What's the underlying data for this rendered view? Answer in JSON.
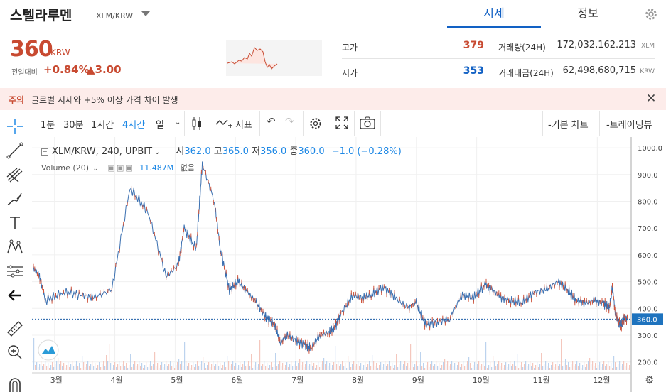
{
  "header": {
    "coin_name": "스텔라루멘",
    "pair": "XLM/KRW",
    "tabs": [
      "시세",
      "정보"
    ]
  },
  "ticker": {
    "price": "360",
    "unit": "KRW",
    "change_label": "전일대비",
    "change_rate": "+0.84%",
    "change_amount": "▲3.00",
    "high_label": "고가",
    "high": "379",
    "low_label": "저가",
    "low": "353",
    "volume_label": "거래량(24H)",
    "volume": "172,032,162.213",
    "volume_unit": "XLM",
    "value_label": "거래대금(24H)",
    "value": "62,498,680,715",
    "value_unit": "KRW"
  },
  "notice": {
    "tag": "주의",
    "text": "글로벌 시세와 +5% 이상 가격 차이 발생"
  },
  "toolbar": {
    "intervals": [
      "1분",
      "30분",
      "1시간",
      "4시간",
      "일"
    ],
    "indicators": "지표",
    "basic_chart": "-기본 차트",
    "trading_view": "-트레이딩뷰"
  },
  "legend": {
    "symbol": "XLM/KRW, 240, UPBIT",
    "o_label": "시",
    "o": "362.0",
    "h_label": "고",
    "h": "365.0",
    "l_label": "저",
    "l": "356.0",
    "c_label": "종",
    "c": "360.0",
    "change": "−1.0 (−0.28%)",
    "volume_label": "Volume (20)",
    "volume_value": "11.487M",
    "volume_extra": "없음"
  },
  "colors": {
    "up": "#c84a31",
    "down": "#1261c4",
    "accent": "#1e88e5"
  },
  "chart_data": {
    "type": "line",
    "x_labels": [
      "3월",
      "4월",
      "5월",
      "6월",
      "7월",
      "8월",
      "9월",
      "10월",
      "11월",
      "12월"
    ],
    "y_ticks": [
      200,
      300,
      400,
      500,
      600,
      700,
      800,
      900,
      1000
    ],
    "y_tick_labels": [
      "200.0",
      "300.0",
      "400.0",
      "500.0",
      "600.0",
      "700.0",
      "800.0",
      "900.0",
      "1000.0"
    ],
    "ylim": [
      170,
      1040
    ],
    "last_price": 360,
    "last_price_label": "360.0",
    "series": [
      {
        "t": [
          0,
          0.1,
          0.2,
          0.5,
          0.8,
          1.0,
          1.3,
          1.6,
          1.9,
          2.2,
          2.4,
          2.5,
          2.7,
          2.8,
          3.0,
          3.1,
          3.25,
          3.4,
          3.55,
          3.7,
          3.85,
          4.0,
          4.1,
          4.2,
          4.35,
          4.5,
          4.6,
          4.75,
          4.9,
          5.0,
          5.1,
          5.3,
          5.45,
          5.6,
          5.8,
          6.0,
          6.2,
          6.35,
          6.5,
          6.7,
          6.9,
          7.1,
          7.3,
          7.5,
          7.6,
          7.75,
          7.9,
          8.1,
          8.3,
          8.5,
          8.7,
          8.85,
          9.0,
          9.15,
          9.3,
          9.45,
          9.55,
          9.6,
          9.65,
          9.7,
          9.75,
          9.8,
          9.85
        ],
        "close": [
          550,
          520,
          430,
          460,
          450,
          440,
          470,
          850,
          760,
          520,
          560,
          700,
          620,
          940,
          800,
          620,
          470,
          500,
          460,
          420,
          370,
          340,
          270,
          300,
          280,
          265,
          250,
          300,
          310,
          330,
          380,
          450,
          440,
          450,
          480,
          440,
          400,
          420,
          340,
          350,
          360,
          450,
          440,
          490,
          470,
          440,
          430,
          420,
          460,
          470,
          500,
          470,
          430,
          420,
          430,
          420,
          400,
          480,
          380,
          350,
          340,
          360,
          360
        ]
      }
    ],
    "volume_label": "Volume (20)"
  }
}
